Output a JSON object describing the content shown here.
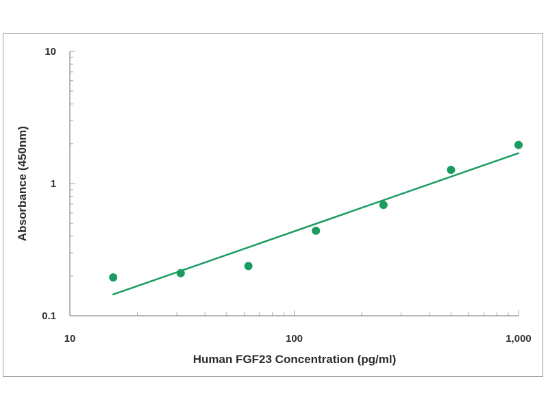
{
  "chart_data": {
    "type": "scatter",
    "title": "",
    "xlabel": "Human FGF23 Concentration (pg/ml)",
    "ylabel": "Absorbance (450nm)",
    "x_scale": "log",
    "y_scale": "log",
    "xlim": [
      10,
      1000
    ],
    "ylim": [
      0.1,
      10
    ],
    "x_ticks": [
      {
        "value": 10,
        "label": "10"
      },
      {
        "value": 100,
        "label": "100"
      },
      {
        "value": 1000,
        "label": "1,000"
      }
    ],
    "y_ticks": [
      {
        "value": 0.1,
        "label": "0.1"
      },
      {
        "value": 1,
        "label": "1"
      },
      {
        "value": 10,
        "label": "10"
      }
    ],
    "grid": false,
    "legend": "none",
    "series": [
      {
        "type": "scatter",
        "x": [
          15.6,
          31.2,
          62.5,
          125,
          250,
          500,
          1000
        ],
        "y": [
          0.195,
          0.21,
          0.238,
          0.44,
          0.69,
          1.27,
          1.96
        ]
      },
      {
        "type": "line",
        "x": [
          15.6,
          1000
        ],
        "y": [
          0.145,
          1.7
        ]
      }
    ],
    "colors": {
      "marker": "#1a9c60",
      "line": "#1a9c60",
      "axis": "#a0a0a0",
      "text": "#2b2b2b"
    }
  }
}
